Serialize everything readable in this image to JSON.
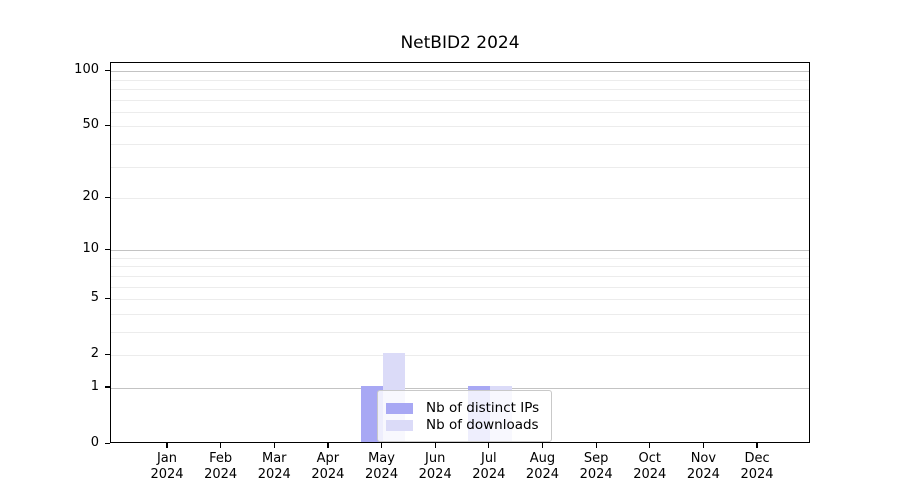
{
  "figure": {
    "title": "NetBID2 2024"
  },
  "chart_data": {
    "type": "bar",
    "title": "NetBID2 2024",
    "categories": [
      "Jan 2024",
      "Feb 2024",
      "Mar 2024",
      "Apr 2024",
      "May 2024",
      "Jun 2024",
      "Jul 2024",
      "Aug 2024",
      "Sep 2024",
      "Oct 2024",
      "Nov 2024",
      "Dec 2024"
    ],
    "series": [
      {
        "name": "Nb of distinct IPs",
        "color": "#a8a8f4",
        "values": [
          0,
          0,
          0,
          0,
          1,
          0,
          1,
          0,
          0,
          0,
          0,
          0
        ]
      },
      {
        "name": "Nb of downloads",
        "color": "#dbdbf8",
        "values": [
          0,
          0,
          0,
          0,
          2,
          0,
          1,
          0,
          0,
          0,
          0,
          0
        ]
      }
    ],
    "xlabel": "",
    "ylabel": "",
    "yscale": "log1p",
    "yticks": [
      0,
      1,
      2,
      5,
      10,
      20,
      50,
      100
    ],
    "ylim": [
      0,
      110.7
    ],
    "grid": true,
    "legend_position": "inside lower-center"
  },
  "style": {
    "major_grid_color": "#c3c3c3",
    "minor_grid_color": "#ececec",
    "axis_color": "#000000",
    "background_color": "#ffffff"
  }
}
